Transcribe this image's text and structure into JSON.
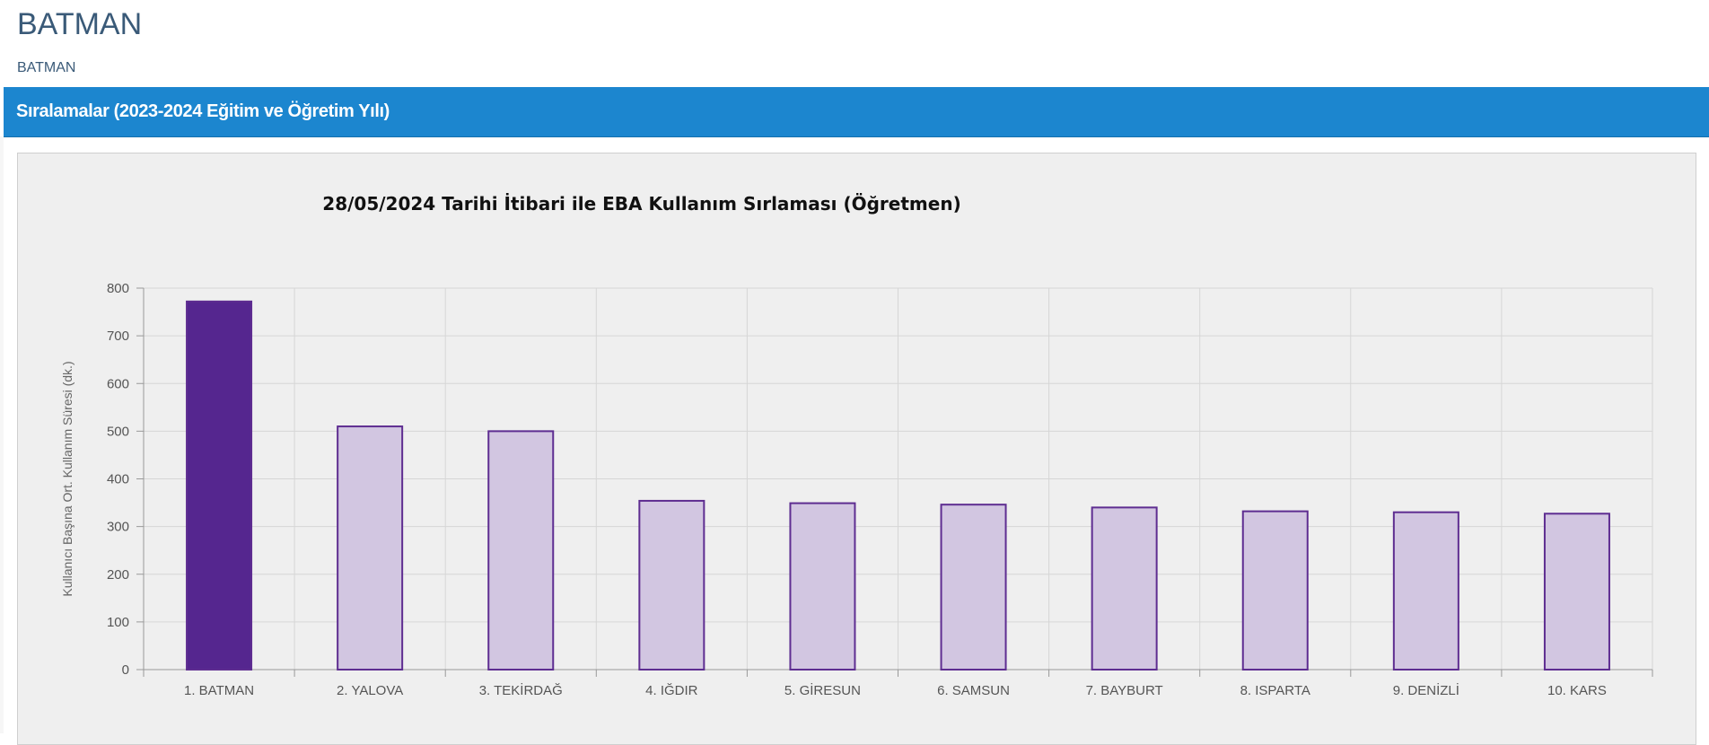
{
  "header": {
    "title": "BATMAN",
    "breadcrumb": "BATMAN"
  },
  "section": {
    "title": "Sıralamalar (2023-2024 Eğitim ve Öğretim Yılı)"
  },
  "colors": {
    "header_bar": "#1c86cf",
    "highlight_bar": "#55268f",
    "normal_bar_fill": "#d2c6e1",
    "bar_stroke": "#5e2d91"
  },
  "chart_data": {
    "type": "bar",
    "title": "28/05/2024 Tarihi İtibari ile EBA Kullanım Sırlaması (Öğretmen)",
    "ylabel": "Kullanıcı Başına Ort. Kullanım Süresi (dk.)",
    "xlabel": "",
    "categories": [
      "1. BATMAN",
      "2. YALOVA",
      "3. TEKİRDAĞ",
      "4. IĞDIR",
      "5. GİRESUN",
      "6. SAMSUN",
      "7. BAYBURT",
      "8. ISPARTA",
      "9. DENİZLİ",
      "10. KARS"
    ],
    "values": [
      772,
      510,
      500,
      354,
      349,
      346,
      340,
      332,
      330,
      327
    ],
    "highlight_index": 0,
    "ylim": [
      0,
      800
    ],
    "yticks": [
      0,
      100,
      200,
      300,
      400,
      500,
      600,
      700,
      800
    ],
    "grid": true,
    "legend": "none"
  }
}
